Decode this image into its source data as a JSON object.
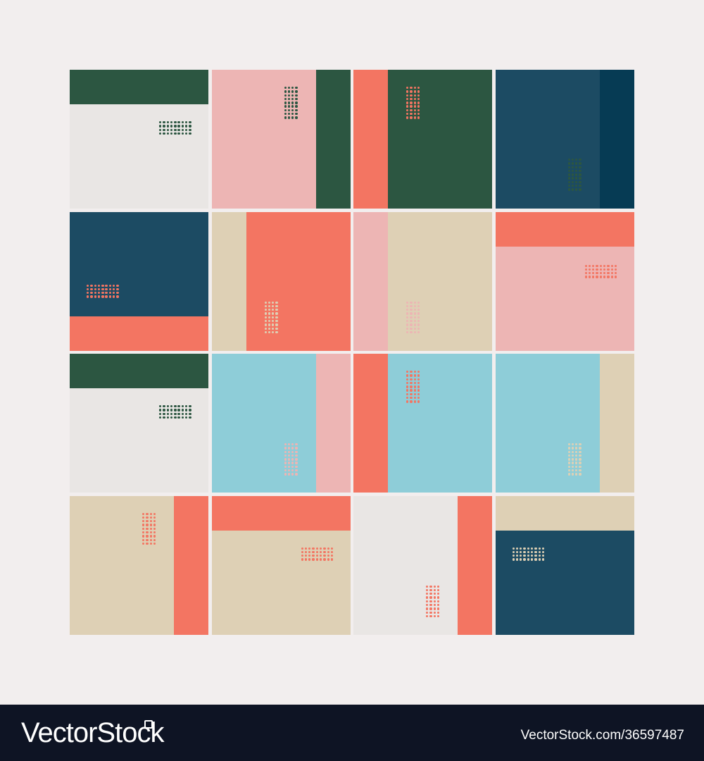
{
  "colors": {
    "background": "#f2eeee",
    "dark_green": "#2c5641",
    "off_white": "#e9e6e4",
    "pink": "#edb5b4",
    "coral": "#f37562",
    "navy": "#1c4b63",
    "deep_navy": "#063b54",
    "beige": "#ded0b5",
    "light_blue": "#8ecdd8",
    "footer": "#0e1424"
  },
  "footer": {
    "brand": "VectorStock",
    "credit": "VectorStock.com/36597487"
  }
}
